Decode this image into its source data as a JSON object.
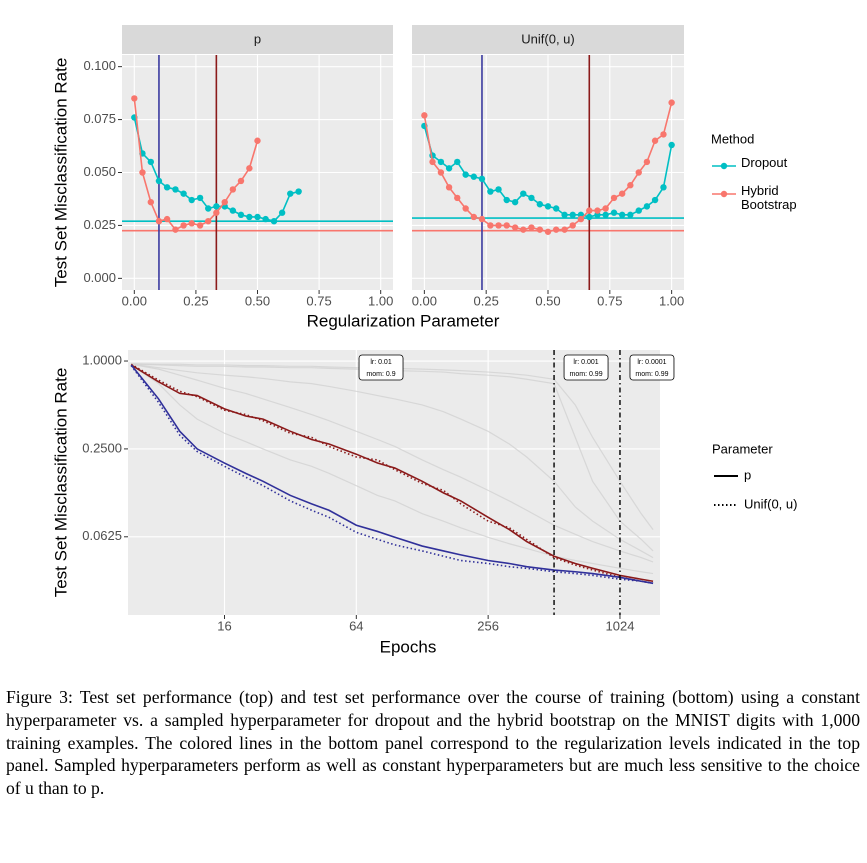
{
  "chart_data": [
    {
      "type": "line",
      "ylabel": "Test Set Misclassification Rate",
      "xlabel": "Regularization Parameter",
      "legend_title": "Method",
      "series": [
        {
          "name": "Dropout",
          "color": "#00bfc4"
        },
        {
          "name": "Hybrid Bootstrap",
          "color": "#f8766d"
        }
      ],
      "xlim": [
        -0.05,
        1.05
      ],
      "ylim": [
        -0.0055,
        0.1055
      ],
      "xticks": [
        {
          "value": 0,
          "label": "0.00"
        },
        {
          "value": 0.25,
          "label": "0.25"
        },
        {
          "value": 0.5,
          "label": "0.50"
        },
        {
          "value": 0.75,
          "label": "0.75"
        },
        {
          "value": 1,
          "label": "1.00"
        }
      ],
      "yticks": [
        {
          "value": 0,
          "label": "0.000"
        },
        {
          "value": 0.025,
          "label": "0.025"
        },
        {
          "value": 0.05,
          "label": "0.050"
        },
        {
          "value": 0.075,
          "label": "0.075"
        },
        {
          "value": 0.1,
          "label": "0.100"
        }
      ],
      "grid": true,
      "facets": [
        {
          "title": "p",
          "vlines": [
            {
              "value": 0.1,
              "color": "#3b3ba0"
            },
            {
              "value": 0.333,
              "color": "#8b1a1a"
            }
          ],
          "data": [
            {
              "x": [
                0,
                0.033,
                0.067,
                0.1,
                0.133,
                0.167,
                0.2,
                0.233,
                0.267,
                0.3,
                0.333,
                0.367,
                0.4,
                0.433,
                0.467,
                0.5,
                0.533,
                0.567,
                0.6,
                0.633,
                0.667
              ],
              "values": [
                0.076,
                0.059,
                0.055,
                0.046,
                0.043,
                0.042,
                0.04,
                0.037,
                0.038,
                0.033,
                0.034,
                0.034,
                0.032,
                0.03,
                0.029,
                0.029,
                0.028,
                0.027,
                0.031,
                0.04,
                0.041
              ],
              "hline": 0.027
            },
            {
              "x": [
                0,
                0.033,
                0.067,
                0.1,
                0.133,
                0.167,
                0.2,
                0.233,
                0.267,
                0.3,
                0.333,
                0.367,
                0.4,
                0.433,
                0.467,
                0.5
              ],
              "values": [
                0.085,
                0.05,
                0.036,
                0.027,
                0.028,
                0.023,
                0.025,
                0.026,
                0.025,
                0.027,
                0.031,
                0.036,
                0.042,
                0.046,
                0.052,
                0.065
              ],
              "hline": 0.0225
            }
          ]
        },
        {
          "title": "Unif(0, u)",
          "vlines": [
            {
              "value": 0.233,
              "color": "#3b3ba0"
            },
            {
              "value": 0.667,
              "color": "#8b1a1a"
            }
          ],
          "data": [
            {
              "x": [
                0,
                0.033,
                0.067,
                0.1,
                0.133,
                0.167,
                0.2,
                0.233,
                0.267,
                0.3,
                0.333,
                0.367,
                0.4,
                0.433,
                0.467,
                0.5,
                0.533,
                0.567,
                0.6,
                0.633,
                0.667,
                0.7,
                0.733,
                0.767,
                0.8,
                0.833,
                0.867,
                0.9,
                0.933,
                0.967,
                1
              ],
              "values": [
                0.072,
                0.058,
                0.055,
                0.052,
                0.055,
                0.049,
                0.048,
                0.047,
                0.041,
                0.042,
                0.037,
                0.036,
                0.04,
                0.038,
                0.035,
                0.034,
                0.033,
                0.03,
                0.03,
                0.03,
                0.029,
                0.03,
                0.03,
                0.031,
                0.03,
                0.03,
                0.032,
                0.034,
                0.037,
                0.043,
                0.063
              ],
              "hline": 0.0285
            },
            {
              "x": [
                0,
                0.033,
                0.067,
                0.1,
                0.133,
                0.167,
                0.2,
                0.233,
                0.267,
                0.3,
                0.333,
                0.367,
                0.4,
                0.433,
                0.467,
                0.5,
                0.533,
                0.567,
                0.6,
                0.633,
                0.667,
                0.7,
                0.733,
                0.767,
                0.8,
                0.833,
                0.867,
                0.9,
                0.933,
                0.967,
                1
              ],
              "values": [
                0.077,
                0.055,
                0.05,
                0.043,
                0.038,
                0.033,
                0.029,
                0.028,
                0.025,
                0.025,
                0.025,
                0.024,
                0.023,
                0.024,
                0.023,
                0.022,
                0.023,
                0.023,
                0.025,
                0.028,
                0.032,
                0.032,
                0.033,
                0.038,
                0.04,
                0.044,
                0.05,
                0.055,
                0.065,
                0.068,
                0.083
              ],
              "hline": 0.0225
            }
          ]
        }
      ]
    },
    {
      "type": "line",
      "ylabel": "Test Set Misclassification Rate",
      "xlabel": "Epochs",
      "log_x": true,
      "log_y": true,
      "grid": true,
      "xlim": [
        5.8,
        1560
      ],
      "ylim": [
        0.0182,
        1.19
      ],
      "xticks": [
        16,
        64,
        256,
        1024
      ],
      "yticks": [
        {
          "value": 0.0625,
          "label": "0.0625"
        },
        {
          "value": 0.25,
          "label": "0.2500"
        },
        {
          "value": 1,
          "label": "1.0000"
        }
      ],
      "x": [
        6,
        8,
        10,
        12,
        16,
        20,
        24,
        32,
        40,
        48,
        64,
        80,
        96,
        128,
        160,
        192,
        256,
        320,
        384,
        512,
        640,
        768,
        1024,
        1280,
        1450
      ],
      "vlines": [
        512,
        1024
      ],
      "annotations": [
        [
          "lr: 0.01",
          "mom: 0.9"
        ],
        [
          "lr: 0.001",
          "mom: 0.99"
        ],
        [
          "lr: 0.0001",
          "mom: 0.99"
        ]
      ],
      "legend": {
        "title": "Parameter",
        "entries": [
          {
            "label": "p",
            "dash": "solid"
          },
          {
            "label": "Unif(0, u)",
            "dash": "dotted"
          }
        ]
      },
      "background_series": [
        {
          "color": "#d2d2d2",
          "values": [
            0.95,
            0.94,
            0.93,
            0.92,
            0.92,
            0.91,
            0.91,
            0.9,
            0.9,
            0.89,
            0.88,
            0.87,
            0.86,
            0.85,
            0.84,
            0.82,
            0.8,
            0.78,
            0.75,
            0.7,
            0.3,
            0.15,
            0.08,
            0.06,
            0.05
          ]
        },
        {
          "color": "#d2d2d2",
          "values": [
            0.95,
            0.9,
            0.86,
            0.83,
            0.8,
            0.78,
            0.76,
            0.72,
            0.7,
            0.67,
            0.62,
            0.58,
            0.55,
            0.5,
            0.45,
            0.4,
            0.33,
            0.27,
            0.22,
            0.15,
            0.1,
            0.08,
            0.06,
            0.05,
            0.045
          ]
        },
        {
          "color": "#d2d2d2",
          "values": [
            0.94,
            0.7,
            0.5,
            0.4,
            0.32,
            0.28,
            0.25,
            0.21,
            0.19,
            0.17,
            0.14,
            0.12,
            0.11,
            0.09,
            0.08,
            0.072,
            0.062,
            0.056,
            0.052,
            0.046,
            0.043,
            0.041,
            0.038,
            0.036,
            0.035
          ]
        },
        {
          "color": "#d2d2d2",
          "values": [
            0.95,
            0.88,
            0.8,
            0.74,
            0.65,
            0.6,
            0.55,
            0.48,
            0.43,
            0.39,
            0.33,
            0.29,
            0.26,
            0.21,
            0.18,
            0.16,
            0.13,
            0.11,
            0.095,
            0.075,
            0.065,
            0.058,
            0.05,
            0.045,
            0.042
          ]
        },
        {
          "color": "#d2d2d2",
          "values": [
            0.96,
            0.95,
            0.95,
            0.94,
            0.94,
            0.93,
            0.93,
            0.92,
            0.92,
            0.91,
            0.9,
            0.9,
            0.89,
            0.88,
            0.87,
            0.86,
            0.84,
            0.82,
            0.8,
            0.75,
            0.5,
            0.3,
            0.15,
            0.09,
            0.07
          ]
        }
      ],
      "series": [
        {
          "color": "#8b1a1a",
          "dash": "solid",
          "values": [
            0.94,
            0.72,
            0.6,
            0.58,
            0.47,
            0.42,
            0.4,
            0.33,
            0.29,
            0.27,
            0.23,
            0.2,
            0.185,
            0.15,
            0.125,
            0.11,
            0.085,
            0.07,
            0.058,
            0.046,
            0.041,
            0.038,
            0.034,
            0.032,
            0.031
          ]
        },
        {
          "color": "#8b1a1a",
          "dash": "dotted",
          "values": [
            0.95,
            0.74,
            0.62,
            0.57,
            0.46,
            0.43,
            0.39,
            0.32,
            0.3,
            0.26,
            0.22,
            0.21,
            0.18,
            0.145,
            0.13,
            0.105,
            0.08,
            0.072,
            0.06,
            0.045,
            0.04,
            0.037,
            0.033,
            0.031,
            0.03
          ]
        },
        {
          "color": "#30309a",
          "dash": "solid",
          "values": [
            0.94,
            0.55,
            0.33,
            0.25,
            0.2,
            0.17,
            0.15,
            0.12,
            0.105,
            0.095,
            0.075,
            0.068,
            0.062,
            0.054,
            0.05,
            0.047,
            0.043,
            0.041,
            0.039,
            0.037,
            0.036,
            0.035,
            0.033,
            0.031,
            0.03
          ]
        },
        {
          "color": "#30309a",
          "dash": "dotted",
          "values": [
            0.93,
            0.52,
            0.31,
            0.24,
            0.19,
            0.16,
            0.14,
            0.11,
            0.095,
            0.085,
            0.067,
            0.06,
            0.055,
            0.05,
            0.046,
            0.043,
            0.041,
            0.039,
            0.038,
            0.036,
            0.035,
            0.034,
            0.032,
            0.031,
            0.03
          ]
        }
      ]
    }
  ],
  "caption": "Figure 3: Test set performance (top) and test set performance over the course of training (bottom) using a constant hyperparameter vs. a sampled hyperparameter for dropout and the hybrid bootstrap on the MNIST digits with 1,000 training examples. The colored lines in the bottom panel correspond to the regularization levels indicated in the top panel. Sampled hyperparameters perform as well as constant hyperparameters but are much less sensitive to the choice of u than to p."
}
